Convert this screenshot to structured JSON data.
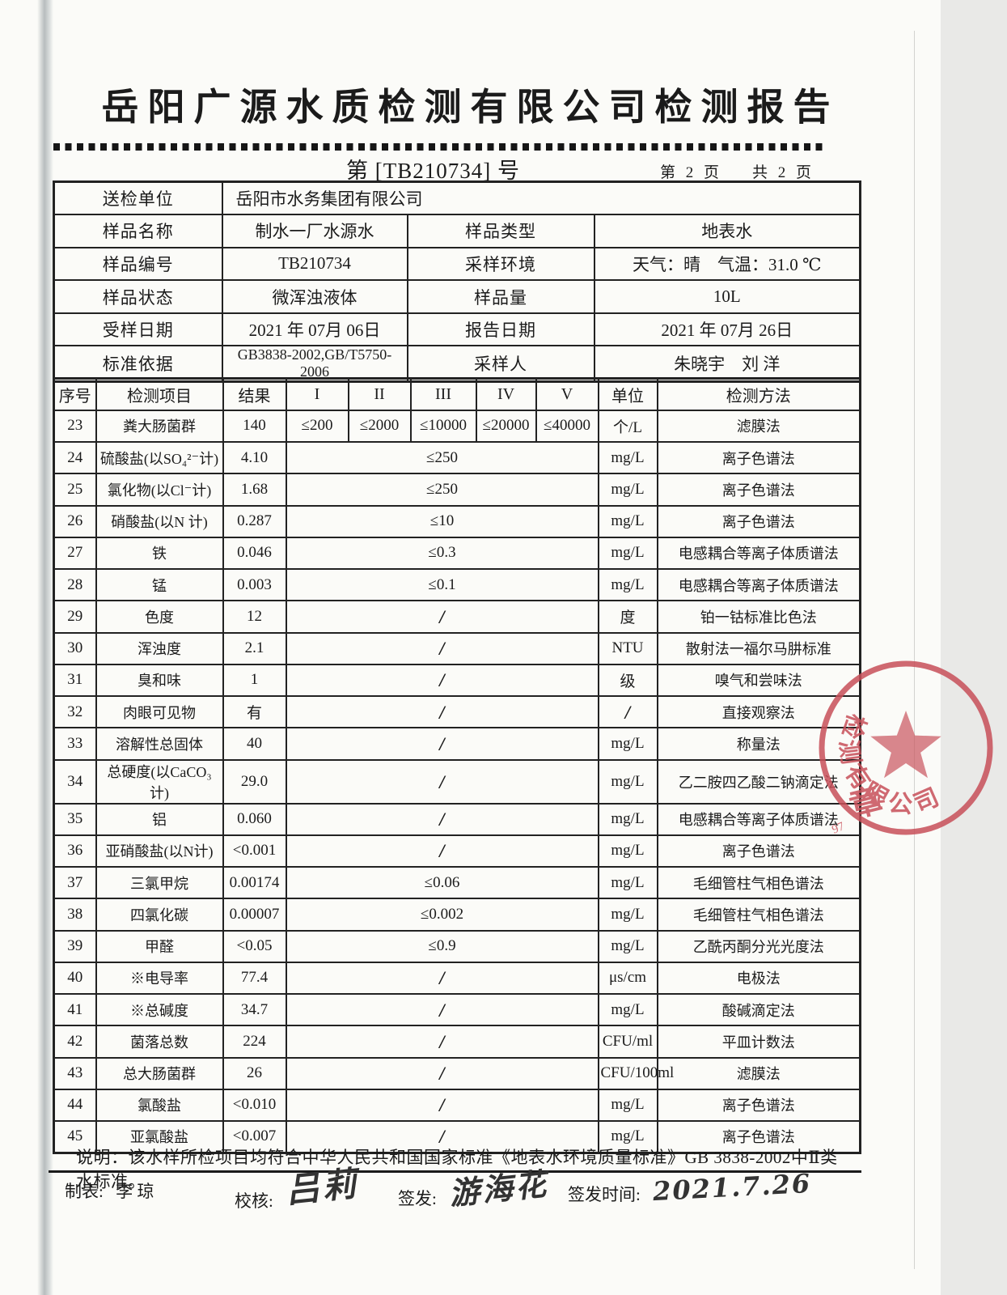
{
  "header": {
    "title": "岳阳广源水质检测有限公司检测报告",
    "doc_no": "第 [TB210734] 号",
    "page_left": "第 2 页",
    "page_right": "共 2 页"
  },
  "info": {
    "rows": [
      {
        "label": "送检单位",
        "value": "岳阳市水务集团有限公司",
        "span": true
      },
      {
        "label": "样品名称",
        "value": "制水一厂水源水",
        "label2": "样品类型",
        "value2": "地表水"
      },
      {
        "label": "样品编号",
        "value": "TB210734",
        "label2": "采样环境",
        "value2": "天气：晴　气温：31.0 ℃"
      },
      {
        "label": "样品状态",
        "value": "微浑浊液体",
        "label2": "样品量",
        "value2": "10L"
      },
      {
        "label": "受样日期",
        "value": "2021 年 07月 06日",
        "label2": "报告日期",
        "value2": "2021 年 07月 26日"
      },
      {
        "label": "标准依据",
        "value": "GB3838-2002,GB/T5750-2006",
        "label2": "采样人",
        "value2": "朱晓宇　刘 洋"
      }
    ]
  },
  "table": {
    "headers": [
      "序号",
      "检测项目",
      "结果",
      "I",
      "II",
      "III",
      "IV",
      "V",
      "单位",
      "检测方法"
    ],
    "rows": [
      {
        "no": "23",
        "item": "粪大肠菌群",
        "result": "140",
        "limits": [
          "≤200",
          "≤2000",
          "≤10000",
          "≤20000",
          "≤40000"
        ],
        "unit": "个/L",
        "method": "滤膜法"
      },
      {
        "no": "24",
        "item": "硫酸盐(以SO₄²⁻计)",
        "result": "4.10",
        "limit_span": "≤250",
        "unit": "mg/L",
        "method": "离子色谱法"
      },
      {
        "no": "25",
        "item": "氯化物(以Cl⁻计)",
        "result": "1.68",
        "limit_span": "≤250",
        "unit": "mg/L",
        "method": "离子色谱法"
      },
      {
        "no": "26",
        "item": "硝酸盐(以N 计)",
        "result": "0.287",
        "limit_span": "≤10",
        "unit": "mg/L",
        "method": "离子色谱法"
      },
      {
        "no": "27",
        "item": "铁",
        "result": "0.046",
        "limit_span": "≤0.3",
        "unit": "mg/L",
        "method": "电感耦合等离子体质谱法"
      },
      {
        "no": "28",
        "item": "锰",
        "result": "0.003",
        "limit_span": "≤0.1",
        "unit": "mg/L",
        "method": "电感耦合等离子体质谱法"
      },
      {
        "no": "29",
        "item": "色度",
        "result": "12",
        "limit_span": "/",
        "unit": "度",
        "method": "铂一钴标准比色法"
      },
      {
        "no": "30",
        "item": "浑浊度",
        "result": "2.1",
        "limit_span": "/",
        "unit": "NTU",
        "method": "散射法一福尔马肼标准"
      },
      {
        "no": "31",
        "item": "臭和味",
        "result": "1",
        "limit_span": "/",
        "unit": "级",
        "method": "嗅气和尝味法"
      },
      {
        "no": "32",
        "item": "肉眼可见物",
        "result": "有",
        "limit_span": "/",
        "unit": "/",
        "method": "直接观察法"
      },
      {
        "no": "33",
        "item": "溶解性总固体",
        "result": "40",
        "limit_span": "/",
        "unit": "mg/L",
        "method": "称量法"
      },
      {
        "no": "34",
        "item": "总硬度(以CaCO₃计)",
        "result": "29.0",
        "limit_span": "/",
        "unit": "mg/L",
        "method": "乙二胺四乙酸二钠滴定法"
      },
      {
        "no": "35",
        "item": "铝",
        "result": "0.060",
        "limit_span": "/",
        "unit": "mg/L",
        "method": "电感耦合等离子体质谱法"
      },
      {
        "no": "36",
        "item": "亚硝酸盐(以N计)",
        "result": "<0.001",
        "limit_span": "/",
        "unit": "mg/L",
        "method": "离子色谱法"
      },
      {
        "no": "37",
        "item": "三氯甲烷",
        "result": "0.00174",
        "limit_span": "≤0.06",
        "unit": "mg/L",
        "method": "毛细管柱气相色谱法"
      },
      {
        "no": "38",
        "item": "四氯化碳",
        "result": "0.00007",
        "limit_span": "≤0.002",
        "unit": "mg/L",
        "method": "毛细管柱气相色谱法"
      },
      {
        "no": "39",
        "item": "甲醛",
        "result": "<0.05",
        "limit_span": "≤0.9",
        "unit": "mg/L",
        "method": "乙酰丙酮分光光度法"
      },
      {
        "no": "40",
        "item": "※电导率",
        "result": "77.4",
        "limit_span": "/",
        "unit": "μs/cm",
        "method": "电极法"
      },
      {
        "no": "41",
        "item": "※总碱度",
        "result": "34.7",
        "limit_span": "/",
        "unit": "mg/L",
        "method": "酸碱滴定法"
      },
      {
        "no": "42",
        "item": "菌落总数",
        "result": "224",
        "limit_span": "/",
        "unit": "CFU/ml",
        "method": "平皿计数法"
      },
      {
        "no": "43",
        "item": "总大肠菌群",
        "result": "26",
        "limit_span": "/",
        "unit": "CFU/100ml",
        "method": "滤膜法"
      },
      {
        "no": "44",
        "item": "氯酸盐",
        "result": "<0.010",
        "limit_span": "/",
        "unit": "mg/L",
        "method": "离子色谱法"
      },
      {
        "no": "45",
        "item": "亚氯酸盐",
        "result": "<0.007",
        "limit_span": "/",
        "unit": "mg/L",
        "method": "离子色谱法"
      }
    ]
  },
  "note": {
    "text": "说明：该水样所检项目均符合中华人民共和国国家标准《地表水环境质量标准》GB 3838-2002中Ⅱ类水标准。"
  },
  "footer": {
    "maker_label": "制表:",
    "maker": "李 琼",
    "checker_label": "校核:",
    "checker_sig": "吕莉",
    "issuer_label": "签发:",
    "issuer_sig": "游海花",
    "time_label": "签发时间:",
    "time_value": "2021.7.26"
  },
  "stamp": {
    "arc_text": "检测有限公司",
    "seal_char": "章",
    "digits": "97",
    "color": "#c8505a"
  },
  "colors": {
    "paper": "#fbfbf8",
    "border": "#222222",
    "stamp_red": "#c8505a"
  }
}
